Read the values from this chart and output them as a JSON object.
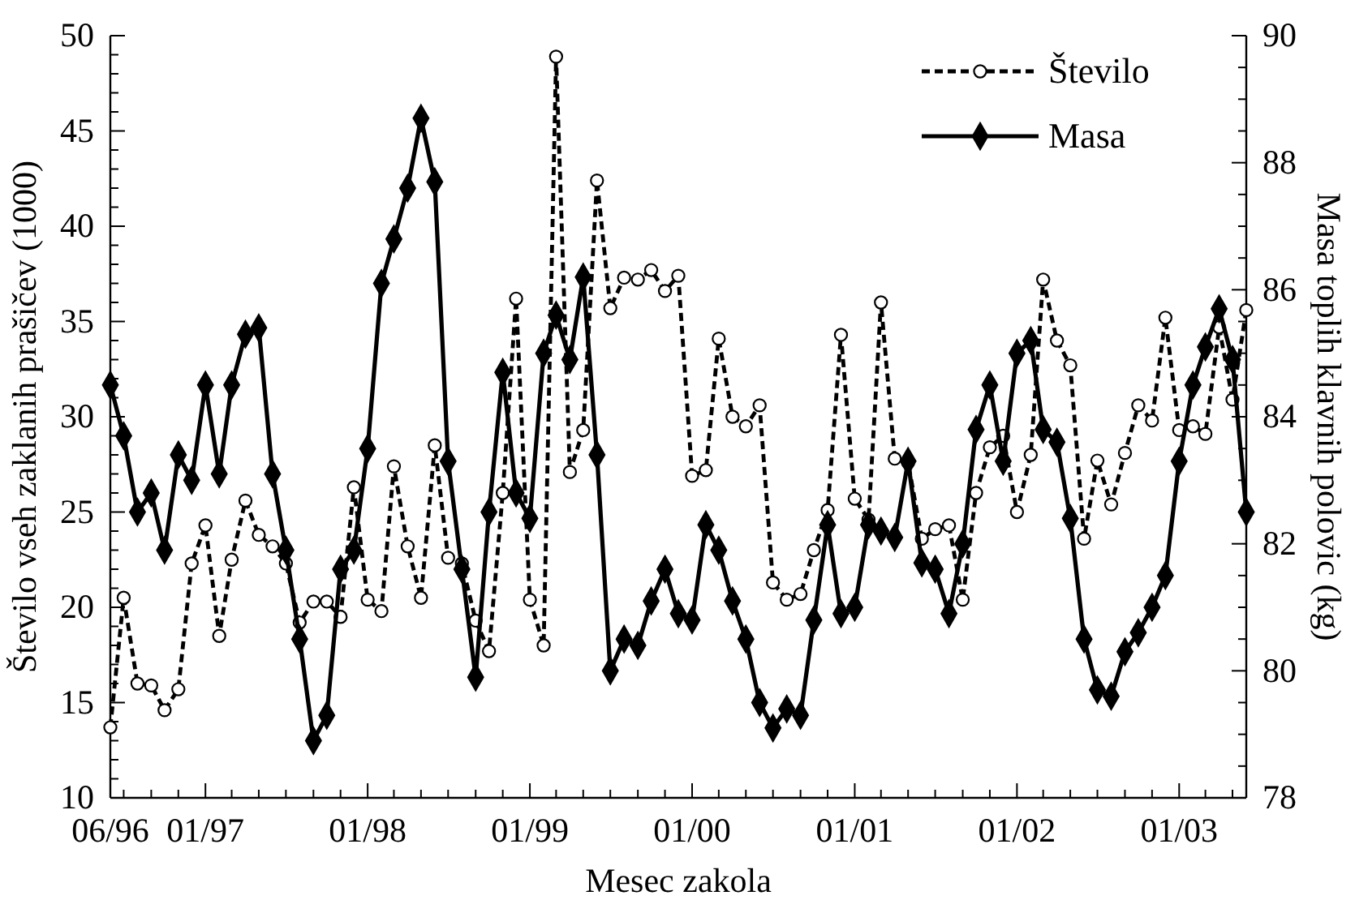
{
  "chart_data": {
    "type": "line",
    "xlabel": "Mesec zakola",
    "ylabel": "Število vseh zaklanih prašičev (1000)",
    "y2label": "Masa toplih klavnih polovic (kg)",
    "x": [
      "1996-06",
      "1996-07",
      "1996-08",
      "1996-09",
      "1996-10",
      "1996-11",
      "1996-12",
      "1997-01",
      "1997-02",
      "1997-03",
      "1997-04",
      "1997-05",
      "1997-06",
      "1997-07",
      "1997-08",
      "1997-09",
      "1997-10",
      "1997-11",
      "1997-12",
      "1998-01",
      "1998-02",
      "1998-03",
      "1998-04",
      "1998-05",
      "1998-06",
      "1998-07",
      "1998-08",
      "1998-09",
      "1998-10",
      "1998-11",
      "1998-12",
      "1999-01",
      "1999-02",
      "1999-03",
      "1999-04",
      "1999-05",
      "1999-06",
      "1999-07",
      "1999-08",
      "1999-09",
      "1999-10",
      "1999-11",
      "1999-12",
      "2000-01",
      "2000-02",
      "2000-03",
      "2000-04",
      "2000-05",
      "2000-06",
      "2000-07",
      "2000-08",
      "2000-09",
      "2000-10",
      "2000-11",
      "2000-12",
      "2001-01",
      "2001-02",
      "2001-03",
      "2001-04",
      "2001-05",
      "2001-06",
      "2001-07",
      "2001-08",
      "2001-09",
      "2001-10",
      "2001-11",
      "2001-12",
      "2002-01",
      "2002-02",
      "2002-03",
      "2002-04",
      "2002-05",
      "2002-06",
      "2002-07",
      "2002-08",
      "2002-09",
      "2002-10",
      "2002-11",
      "2002-12",
      "2003-01",
      "2003-02",
      "2003-03",
      "2003-04",
      "2003-05",
      "2003-06"
    ],
    "series": [
      {
        "name": "Število",
        "color": "#000000",
        "marker": "circle",
        "line_style": "dashed",
        "values": [
          13.7,
          20.5,
          16.0,
          15.9,
          14.6,
          15.7,
          22.3,
          24.3,
          18.5,
          22.5,
          25.6,
          23.8,
          23.2,
          22.3,
          19.2,
          20.3,
          20.3,
          19.5,
          26.3,
          20.4,
          19.8,
          27.4,
          23.2,
          20.5,
          28.5,
          22.6,
          22.3,
          19.3,
          17.7,
          26.0,
          36.2,
          20.4,
          18.0,
          48.9,
          27.1,
          29.3,
          42.4,
          35.7,
          37.3,
          37.2,
          37.7,
          36.6,
          37.4,
          26.9,
          27.2,
          34.1,
          30.0,
          29.5,
          30.6,
          21.3,
          20.4,
          20.7,
          23.0,
          25.1,
          34.3,
          25.7,
          24.6,
          36.0,
          27.8,
          27.6,
          23.6,
          24.1,
          24.3,
          20.4,
          26.0,
          28.4,
          29.0,
          25.0,
          28.0,
          37.2,
          34.0,
          32.7,
          23.6,
          27.7,
          25.4,
          28.1,
          30.6,
          29.8,
          35.2,
          29.3,
          29.5,
          29.1,
          34.7,
          30.9,
          35.6
        ]
      },
      {
        "name": "Masa",
        "color": "#000000",
        "marker": "diamond",
        "line_style": "solid",
        "axis": "y2",
        "values": [
          84.5,
          83.7,
          82.5,
          82.8,
          81.9,
          83.4,
          83.0,
          84.5,
          83.1,
          84.5,
          85.3,
          85.4,
          83.1,
          81.9,
          80.5,
          78.9,
          79.3,
          81.6,
          81.9,
          83.5,
          86.1,
          86.8,
          87.6,
          88.7,
          87.7,
          83.3,
          81.6,
          79.9,
          82.5,
          84.7,
          82.8,
          82.4,
          85.0,
          85.6,
          84.9,
          86.2,
          83.4,
          80.0,
          80.5,
          80.4,
          81.1,
          81.6,
          80.9,
          80.8,
          82.3,
          81.9,
          81.1,
          80.5,
          79.5,
          79.1,
          79.4,
          79.3,
          80.8,
          82.3,
          80.9,
          81.0,
          82.3,
          82.2,
          82.1,
          83.3,
          81.7,
          81.6,
          80.9,
          82.0,
          83.8,
          84.5,
          83.3,
          85.0,
          85.2,
          83.8,
          83.6,
          82.4,
          80.5,
          79.7,
          79.6,
          80.3,
          80.6,
          81.0,
          81.5,
          83.3,
          84.5,
          85.1,
          85.7,
          84.9,
          82.5
        ]
      }
    ],
    "xlim": [
      "1996-06",
      "2003-06"
    ],
    "xticks": [
      {
        "value": "1996-06",
        "label": "06/96"
      },
      {
        "value": "1996-07",
        "label": null
      },
      {
        "value": "1996-09",
        "label": null
      },
      {
        "value": "1996-11",
        "label": null
      },
      {
        "value": "1997-01",
        "label": "01/97"
      },
      {
        "value": "1997-03",
        "label": null
      },
      {
        "value": "1997-05",
        "label": null
      },
      {
        "value": "1997-07",
        "label": null
      },
      {
        "value": "1997-09",
        "label": null
      },
      {
        "value": "1997-11",
        "label": null
      },
      {
        "value": "1998-01",
        "label": "01/98"
      },
      {
        "value": "1998-03",
        "label": null
      },
      {
        "value": "1998-05",
        "label": null
      },
      {
        "value": "1998-07",
        "label": null
      },
      {
        "value": "1998-09",
        "label": null
      },
      {
        "value": "1998-11",
        "label": null
      },
      {
        "value": "1999-01",
        "label": "01/99"
      },
      {
        "value": "1999-03",
        "label": null
      },
      {
        "value": "1999-05",
        "label": null
      },
      {
        "value": "1999-07",
        "label": null
      },
      {
        "value": "1999-09",
        "label": null
      },
      {
        "value": "1999-11",
        "label": null
      },
      {
        "value": "2000-01",
        "label": "01/00"
      },
      {
        "value": "2000-03",
        "label": null
      },
      {
        "value": "2000-05",
        "label": null
      },
      {
        "value": "2000-07",
        "label": null
      },
      {
        "value": "2000-09",
        "label": null
      },
      {
        "value": "2000-11",
        "label": null
      },
      {
        "value": "2001-01",
        "label": "01/01"
      },
      {
        "value": "2001-03",
        "label": null
      },
      {
        "value": "2001-05",
        "label": null
      },
      {
        "value": "2001-07",
        "label": null
      },
      {
        "value": "2001-09",
        "label": null
      },
      {
        "value": "2001-11",
        "label": null
      },
      {
        "value": "2002-01",
        "label": "01/02"
      },
      {
        "value": "2002-03",
        "label": null
      },
      {
        "value": "2002-05",
        "label": null
      },
      {
        "value": "2002-07",
        "label": null
      },
      {
        "value": "2002-09",
        "label": null
      },
      {
        "value": "2002-11",
        "label": null
      },
      {
        "value": "2003-01",
        "label": "01/03"
      },
      {
        "value": "2003-03",
        "label": null
      },
      {
        "value": "2003-05",
        "label": null
      }
    ],
    "ylim": [
      10,
      50
    ],
    "yticks": [
      10,
      {
        "value": 11,
        "label": null
      },
      {
        "value": 12,
        "label": null
      },
      {
        "value": 13,
        "label": null
      },
      {
        "value": 14,
        "label": null
      },
      15,
      {
        "value": 16,
        "label": null
      },
      {
        "value": 17,
        "label": null
      },
      {
        "value": 18,
        "label": null
      },
      {
        "value": 19,
        "label": null
      },
      20,
      {
        "value": 21,
        "label": null
      },
      {
        "value": 22,
        "label": null
      },
      {
        "value": 23,
        "label": null
      },
      {
        "value": 24,
        "label": null
      },
      25,
      {
        "value": 26,
        "label": null
      },
      {
        "value": 27,
        "label": null
      },
      {
        "value": 28,
        "label": null
      },
      {
        "value": 29,
        "label": null
      },
      30,
      {
        "value": 31,
        "label": null
      },
      {
        "value": 32,
        "label": null
      },
      {
        "value": 33,
        "label": null
      },
      {
        "value": 34,
        "label": null
      },
      35,
      {
        "value": 36,
        "label": null
      },
      {
        "value": 37,
        "label": null
      },
      {
        "value": 38,
        "label": null
      },
      {
        "value": 39,
        "label": null
      },
      40,
      {
        "value": 41,
        "label": null
      },
      {
        "value": 42,
        "label": null
      },
      {
        "value": 43,
        "label": null
      },
      {
        "value": 44,
        "label": null
      },
      45,
      {
        "value": 46,
        "label": null
      },
      {
        "value": 47,
        "label": null
      },
      {
        "value": 48,
        "label": null
      },
      {
        "value": 49,
        "label": null
      },
      50
    ],
    "y2lim": [
      78,
      90
    ],
    "y2ticks": [
      78,
      {
        "value": 78.5,
        "label": null
      },
      {
        "value": 79,
        "label": null
      },
      {
        "value": 79.5,
        "label": null
      },
      80,
      {
        "value": 80.5,
        "label": null
      },
      {
        "value": 81,
        "label": null
      },
      {
        "value": 81.5,
        "label": null
      },
      82,
      {
        "value": 82.5,
        "label": null
      },
      {
        "value": 83,
        "label": null
      },
      {
        "value": 83.5,
        "label": null
      },
      84,
      {
        "value": 84.5,
        "label": null
      },
      {
        "value": 85,
        "label": null
      },
      {
        "value": 85.5,
        "label": null
      },
      86,
      {
        "value": 86.5,
        "label": null
      },
      {
        "value": 87,
        "label": null
      },
      {
        "value": 87.5,
        "label": null
      },
      88,
      {
        "value": 88.5,
        "label": null
      },
      {
        "value": 89,
        "label": null
      },
      {
        "value": 89.5,
        "label": null
      },
      90
    ],
    "grid": false,
    "legend": "top right"
  }
}
